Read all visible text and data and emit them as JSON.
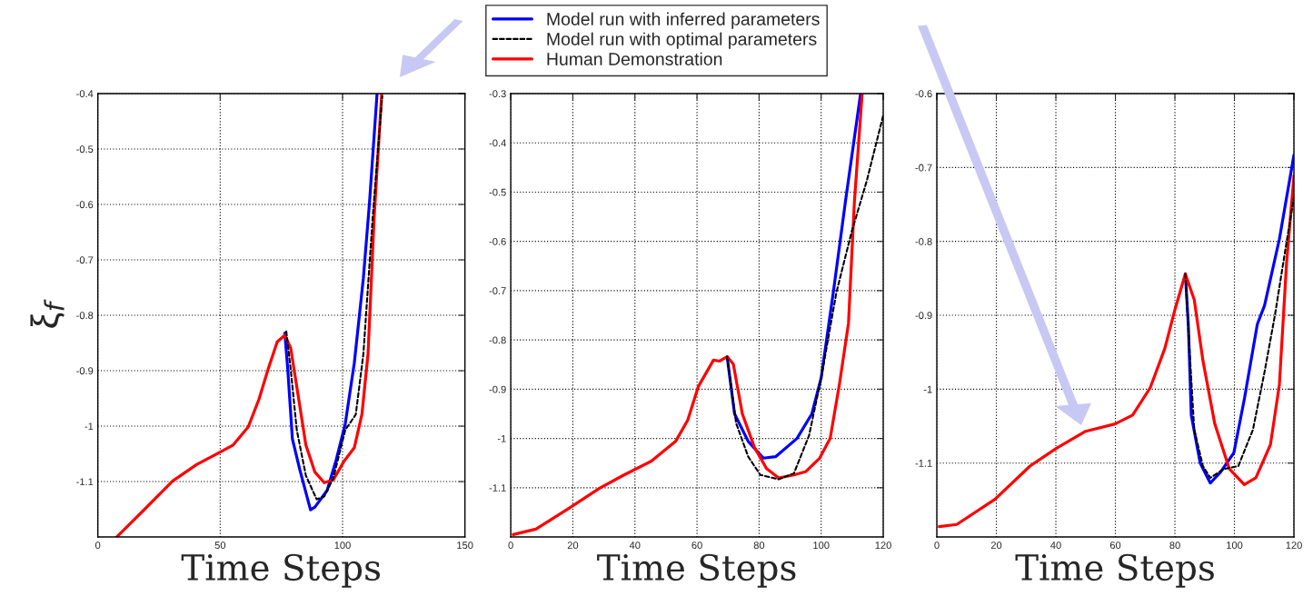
{
  "chart_data": [
    {
      "type": "line",
      "xlabel": "Time Steps",
      "ylabel": "ξ$_{f}$",
      "xlim": [
        0,
        150
      ],
      "ylim": [
        -1.2,
        -0.4
      ],
      "xticks": [
        0,
        50,
        100,
        150
      ],
      "yticks": [
        -1.1,
        -1,
        -0.9,
        -0.8,
        -0.7,
        -0.6,
        -0.5,
        -0.4
      ],
      "grid": true,
      "legend": "top",
      "series": [
        {
          "name": "Model run with inferred parameters",
          "color": "#0000ff",
          "line_style": "solid",
          "x": [
            76.4,
            77.6,
            79.5,
            82.5,
            86.9,
            88.7,
            93.7,
            97.4,
            101.1,
            104.8,
            108.5,
            111.0,
            114.1
          ],
          "values": [
            -0.832,
            -0.897,
            -1.023,
            -1.078,
            -1.151,
            -1.146,
            -1.116,
            -1.061,
            -0.996,
            -0.886,
            -0.733,
            -0.597,
            -0.4
          ]
        },
        {
          "name": "Model run with optimal parameters",
          "color": "#000000",
          "line_style": "dashed",
          "x": [
            77.0,
            78.8,
            81.3,
            85.0,
            89.4,
            92.5,
            96.2,
            101.1,
            105.4,
            108.5,
            112.3,
            116.2
          ],
          "values": [
            -0.829,
            -0.897,
            -1.007,
            -1.089,
            -1.132,
            -1.127,
            -1.094,
            -1.007,
            -0.979,
            -0.87,
            -0.624,
            -0.405
          ]
        },
        {
          "name": "Human Demonstration",
          "color": "#ff0000",
          "line_style": "solid",
          "x": [
            7.7,
            18.2,
            30.6,
            40.5,
            49.1,
            55.3,
            61.5,
            65.8,
            69.6,
            73.3,
            76.4,
            78.8,
            81.9,
            85.0,
            88.7,
            92.5,
            96.2,
            100.5,
            104.8,
            107.9,
            110.4,
            112.9,
            116.0
          ],
          "values": [
            -1.2,
            -1.154,
            -1.099,
            -1.069,
            -1.049,
            -1.034,
            -1.001,
            -0.952,
            -0.897,
            -0.848,
            -0.836,
            -0.859,
            -0.946,
            -1.034,
            -1.083,
            -1.102,
            -1.097,
            -1.064,
            -1.039,
            -0.979,
            -0.87,
            -0.624,
            -0.4
          ]
        }
      ]
    },
    {
      "type": "line",
      "xlabel": "Time Steps",
      "xlim": [
        0,
        120
      ],
      "ylim": [
        -1.2,
        -0.3
      ],
      "xticks": [
        0,
        20,
        40,
        60,
        80,
        100,
        120
      ],
      "yticks": [
        -1.1,
        -1,
        -0.9,
        -0.8,
        -0.7,
        -0.6,
        -0.5,
        -0.4,
        -0.3
      ],
      "grid": true,
      "series": [
        {
          "color": "#0000ff",
          "line_style": "solid",
          "x": [
            69.7,
            72.1,
            76.5,
            81.4,
            85.3,
            92.2,
            97.0,
            100.0,
            103.9,
            107.8,
            112.7
          ],
          "values": [
            -0.834,
            -0.95,
            -1.006,
            -1.04,
            -1.037,
            -1.0,
            -0.95,
            -0.877,
            -0.704,
            -0.52,
            -0.3
          ]
        },
        {
          "color": "#000000",
          "line_style": "dashed",
          "x": [
            69.7,
            72.6,
            76.5,
            80.4,
            86.3,
            91.2,
            96.1,
            100.0,
            104.9,
            109.8,
            114.7,
            120.0
          ],
          "values": [
            -0.834,
            -0.969,
            -1.037,
            -1.074,
            -1.083,
            -1.071,
            -0.994,
            -0.877,
            -0.704,
            -0.581,
            -0.477,
            -0.344
          ]
        },
        {
          "color": "#ff0000",
          "line_style": "solid",
          "x": [
            0.8,
            8.1,
            18.9,
            28.6,
            36.5,
            45.3,
            53.1,
            57.0,
            60.4,
            65.3,
            67.3,
            69.7,
            71.7,
            74.6,
            78.5,
            82.4,
            86.3,
            91.2,
            95.1,
            99.5,
            102.9,
            105.9,
            108.8,
            110.7,
            113.2
          ],
          "values": [
            -1.195,
            -1.184,
            -1.141,
            -1.101,
            -1.074,
            -1.046,
            -1.006,
            -0.963,
            -0.895,
            -0.841,
            -0.843,
            -0.834,
            -0.849,
            -0.95,
            -1.018,
            -1.061,
            -1.08,
            -1.074,
            -1.067,
            -1.04,
            -1.0,
            -0.889,
            -0.766,
            -0.52,
            -0.3
          ]
        }
      ]
    },
    {
      "type": "line",
      "xlabel": "Time Steps",
      "xlim": [
        0,
        120
      ],
      "ylim": [
        -1.2,
        -0.6
      ],
      "xticks": [
        0,
        20,
        40,
        60,
        80,
        100,
        120
      ],
      "yticks": [
        -1.1,
        -1,
        -0.9,
        -0.8,
        -0.7,
        -0.6
      ],
      "grid": true,
      "series": [
        {
          "color": "#0000ff",
          "line_style": "solid",
          "x": [
            83.5,
            84.5,
            85.5,
            88.5,
            91.9,
            95.4,
            99.8,
            103.3,
            107.7,
            110.1,
            115.1,
            120.0
          ],
          "values": [
            -0.844,
            -0.912,
            -1.035,
            -1.1,
            -1.127,
            -1.112,
            -1.086,
            -1.014,
            -0.912,
            -0.887,
            -0.797,
            -0.683
          ]
        },
        {
          "color": "#000000",
          "line_style": "dashed",
          "x": [
            83.5,
            85.0,
            86.5,
            89.4,
            91.9,
            96.4,
            101.3,
            106.2,
            110.1,
            113.6,
            117.0,
            120.0
          ],
          "values": [
            -0.844,
            -0.953,
            -1.055,
            -1.104,
            -1.12,
            -1.108,
            -1.104,
            -1.055,
            -0.977,
            -0.9,
            -0.814,
            -0.74
          ]
        },
        {
          "color": "#ff0000",
          "line_style": "solid",
          "x": [
            0.8,
            6.7,
            19.5,
            31.3,
            40.2,
            50.0,
            59.9,
            65.8,
            71.7,
            76.6,
            80.1,
            83.5,
            86.5,
            89.4,
            93.4,
            98.3,
            103.3,
            107.2,
            112.1,
            115.1,
            117.5,
            120.0
          ],
          "values": [
            -1.186,
            -1.183,
            -1.149,
            -1.104,
            -1.08,
            -1.057,
            -1.047,
            -1.035,
            -0.998,
            -0.945,
            -0.891,
            -0.844,
            -0.879,
            -0.961,
            -1.047,
            -1.108,
            -1.129,
            -1.12,
            -1.075,
            -0.994,
            -0.83,
            -0.711
          ]
        }
      ]
    }
  ]
}
